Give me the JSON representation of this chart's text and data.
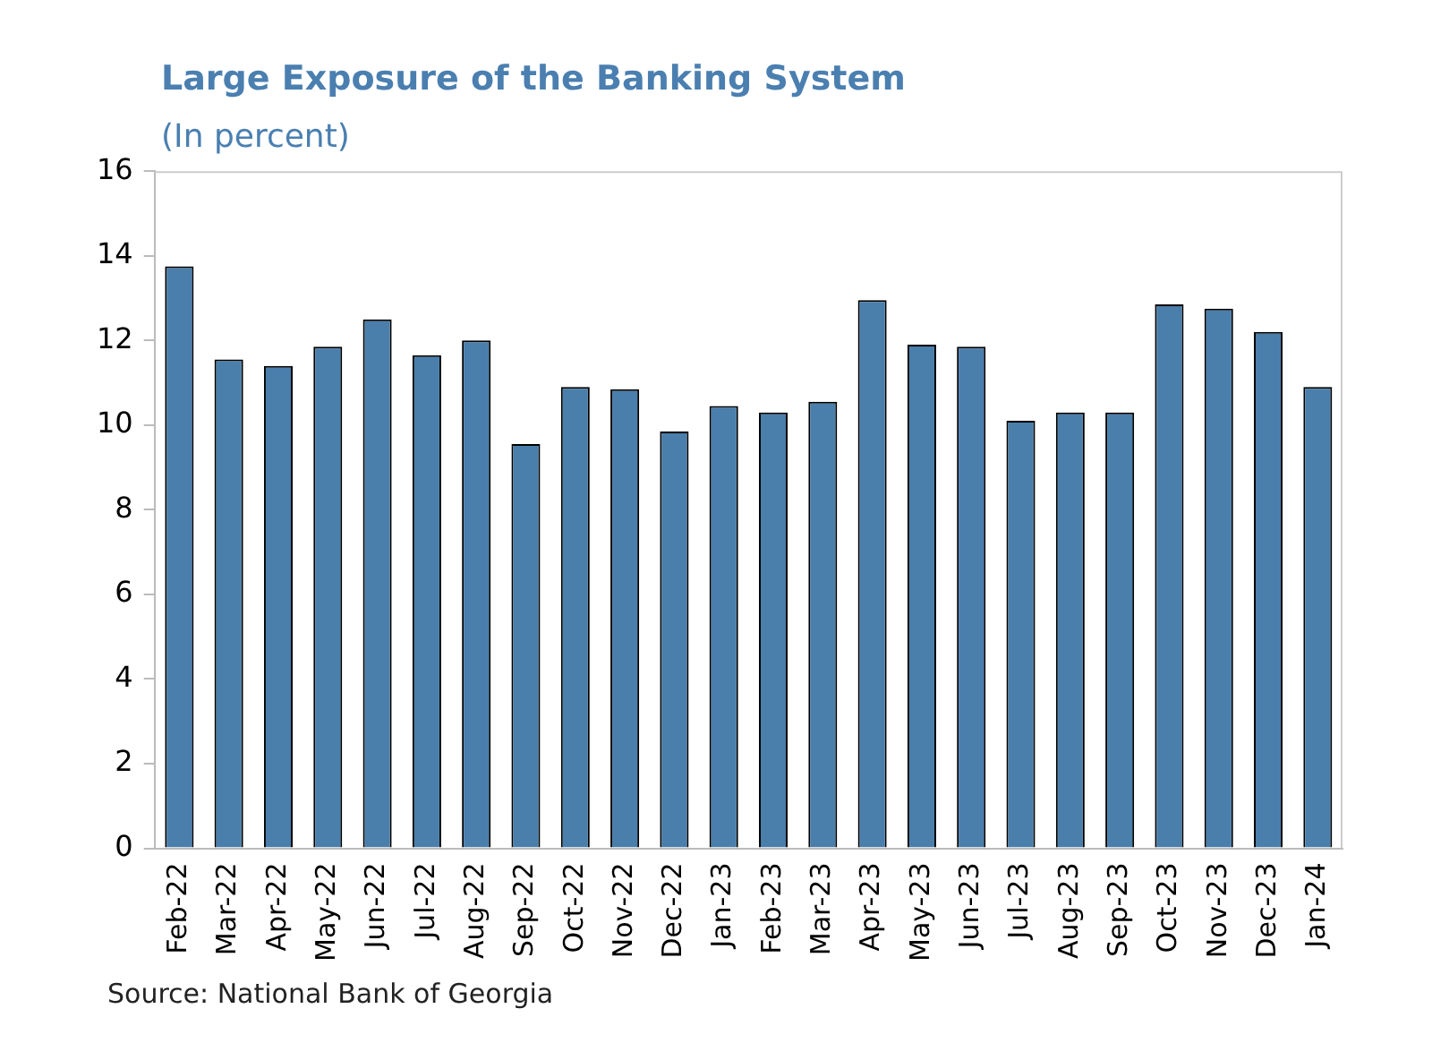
{
  "chart_data": {
    "type": "bar",
    "title": "Large Exposure of the Banking System",
    "subtitle": "(In percent)",
    "categories": [
      "Feb-22",
      "Mar-22",
      "Apr-22",
      "May-22",
      "Jun-22",
      "Jul-22",
      "Aug-22",
      "Sep-22",
      "Oct-22",
      "Nov-22",
      "Dec-22",
      "Jan-23",
      "Feb-23",
      "Mar-23",
      "Apr-23",
      "May-23",
      "Jun-23",
      "Jul-23",
      "Aug-23",
      "Sep-23",
      "Oct-23",
      "Nov-23",
      "Dec-23",
      "Jan-24"
    ],
    "values": [
      13.75,
      11.55,
      11.4,
      11.85,
      12.5,
      11.65,
      12.0,
      9.55,
      10.9,
      10.85,
      9.85,
      10.45,
      10.3,
      10.55,
      12.95,
      11.9,
      11.85,
      10.1,
      10.3,
      10.3,
      12.85,
      12.75,
      12.2,
      10.9
    ],
    "color": "#4a7eab",
    "ylim": [
      0,
      16
    ],
    "yticks": [
      0,
      2,
      4,
      6,
      8,
      10,
      12,
      14,
      16
    ],
    "grid": false,
    "legend": false,
    "annotations": [
      "Source: National Bank of Georgia"
    ]
  }
}
